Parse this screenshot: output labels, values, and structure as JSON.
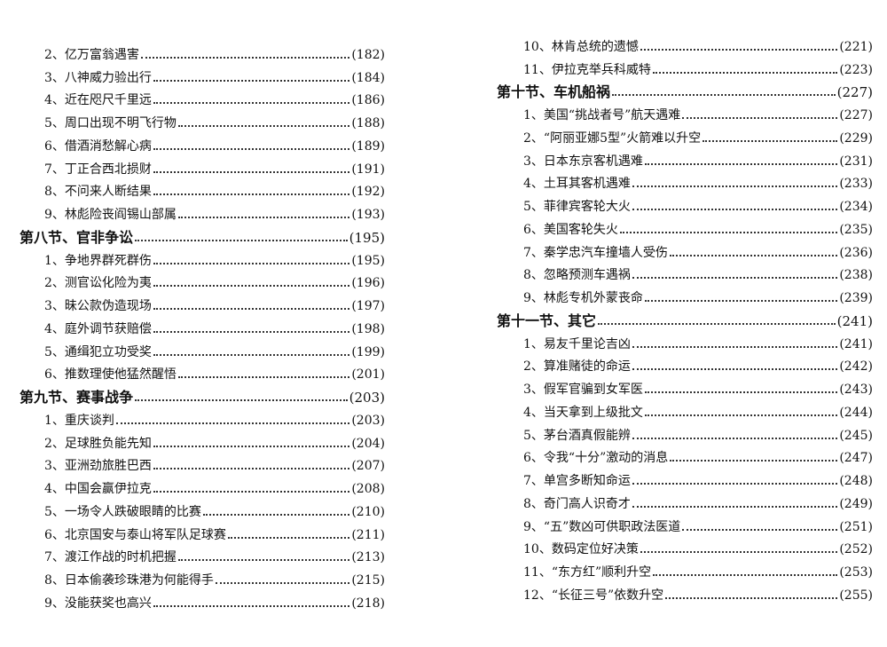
{
  "left_page": {
    "entries": [
      {
        "label": "2、亿万富翁遇害",
        "page": "(182)",
        "level": "item"
      },
      {
        "label": "3、八神威力验出行",
        "page": "(184)",
        "level": "item"
      },
      {
        "label": "4、近在咫尺千里远",
        "page": "(186)",
        "level": "item"
      },
      {
        "label": "5、周口出现不明飞行物",
        "page": "(188)",
        "level": "item"
      },
      {
        "label": "6、借酒消愁解心病",
        "page": "(189)",
        "level": "item"
      },
      {
        "label": "7、丁正合西北损财",
        "page": "(191)",
        "level": "item"
      },
      {
        "label": "8、不问来人断结果",
        "page": "(192)",
        "level": "item"
      },
      {
        "label": "9、林彪险丧阎锡山部属",
        "page": "(193)",
        "level": "item"
      },
      {
        "label": "第八节、官非争讼",
        "page": "(195)",
        "level": "section"
      },
      {
        "label": "1、争地界群死群伤",
        "page": "(195)",
        "level": "item"
      },
      {
        "label": "2、测官讼化险为夷",
        "page": "(196)",
        "level": "item"
      },
      {
        "label": "3、昧公款伪造现场",
        "page": "(197)",
        "level": "item"
      },
      {
        "label": "4、庭外调节获赔偿",
        "page": "(198)",
        "level": "item"
      },
      {
        "label": "5、通缉犯立功受奖",
        "page": "(199)",
        "level": "item"
      },
      {
        "label": "6、推数理使他猛然醒悟",
        "page": "(201)",
        "level": "item"
      },
      {
        "label": "第九节、赛事战争",
        "page": "(203)",
        "level": "section"
      },
      {
        "label": "1、重庆谈判",
        "page": "(203)",
        "level": "item"
      },
      {
        "label": "2、足球胜负能先知",
        "page": "(204)",
        "level": "item"
      },
      {
        "label": "3、亚洲劲旅胜巴西",
        "page": "(207)",
        "level": "item"
      },
      {
        "label": "4、中国会赢伊拉克",
        "page": "(208)",
        "level": "item"
      },
      {
        "label": "5、一场令人跌破眼睛的比赛",
        "page": "(210)",
        "level": "item"
      },
      {
        "label": "6、北京国安与泰山将军队足球赛",
        "page": "(211)",
        "level": "item"
      },
      {
        "label": "7、渡江作战的时机把握",
        "page": "(213)",
        "level": "item"
      },
      {
        "label": "8、日本偷袭珍珠港为何能得手",
        "page": "(215)",
        "level": "item"
      },
      {
        "label": "9、没能获奖也高兴",
        "page": "(218)",
        "level": "item"
      }
    ]
  },
  "right_page": {
    "entries": [
      {
        "label": "10、林肯总统的遗憾",
        "page": "(221)",
        "level": "item"
      },
      {
        "label": "11、伊拉克举兵科威特",
        "page": "(223)",
        "level": "item"
      },
      {
        "label": "第十节、车机船祸",
        "page": "(227)",
        "level": "section"
      },
      {
        "label": "1、美国“挑战者号”航天遇难",
        "page": "(227)",
        "level": "item"
      },
      {
        "label": "2、“阿丽亚娜5型”火箭难以升空",
        "page": "(229)",
        "level": "item"
      },
      {
        "label": "3、日本东京客机遇难",
        "page": "(231)",
        "level": "item"
      },
      {
        "label": "4、土耳其客机遇难",
        "page": "(233)",
        "level": "item"
      },
      {
        "label": "5、菲律宾客轮大火",
        "page": "(234)",
        "level": "item"
      },
      {
        "label": "6、美国客轮失火",
        "page": "(235)",
        "level": "item"
      },
      {
        "label": "7、秦学忠汽车撞墙人受伤",
        "page": "(236)",
        "level": "item"
      },
      {
        "label": "8、忽略预测车遇祸",
        "page": "(238)",
        "level": "item"
      },
      {
        "label": "9、林彪专机外蒙丧命",
        "page": "(239)",
        "level": "item"
      },
      {
        "label": "第十一节、其它",
        "page": "(241)",
        "level": "section"
      },
      {
        "label": "1、易友千里论吉凶",
        "page": "(241)",
        "level": "item"
      },
      {
        "label": "2、算准赌徒的命运",
        "page": "(242)",
        "level": "item"
      },
      {
        "label": "3、假军官骗到女军医",
        "page": "(243)",
        "level": "item"
      },
      {
        "label": "4、当天拿到上级批文",
        "page": "(244)",
        "level": "item"
      },
      {
        "label": "5、茅台酒真假能辨",
        "page": "(245)",
        "level": "item"
      },
      {
        "label": "6、令我“十分”激动的消息",
        "page": "(247)",
        "level": "item"
      },
      {
        "label": "7、单宫多断知命运",
        "page": "(248)",
        "level": "item"
      },
      {
        "label": "8、奇门高人识奇才",
        "page": "(249)",
        "level": "item"
      },
      {
        "label": "9、“五”数凶可供职政法医道",
        "page": "(251)",
        "level": "item"
      },
      {
        "label": "10、数码定位好决策",
        "page": "(252)",
        "level": "item"
      },
      {
        "label": "11、“东方红”顺利升空",
        "page": "(253)",
        "level": "item"
      },
      {
        "label": "12、“长征三号”依数升空",
        "page": "(255)",
        "level": "item"
      }
    ]
  }
}
